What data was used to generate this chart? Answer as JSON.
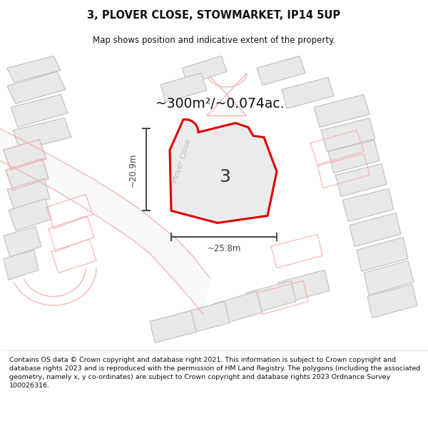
{
  "title_line1": "3, PLOVER CLOSE, STOWMARKET, IP14 5UP",
  "title_line2": "Map shows position and indicative extent of the property.",
  "area_label": "~300m²/~0.074ac.",
  "dim_width": "~25.8m",
  "dim_height": "~20.9m",
  "plot_number": "3",
  "road_label": "Plover Close",
  "footer": "Contains OS data © Crown copyright and database right 2021. This information is subject to Crown copyright and database rights 2023 and is reproduced with the permission of HM Land Registry. The polygons (including the associated geometry, namely x, y co-ordinates) are subject to Crown copyright and database rights 2023 Ordnance Survey 100026316.",
  "bg_color": "#ffffff",
  "building_fill": "#e8e8e8",
  "building_stroke": "#c0c0c0",
  "plot_outline_stroke": "#f5b0b0",
  "highlight_stroke": "#e00000",
  "highlight_fill": "#ebebeb",
  "dim_color": "#444444",
  "title_color": "#111111",
  "footer_color": "#111111",
  "road_label_color": "#bbbbbb",
  "map_bg": "#ffffff"
}
